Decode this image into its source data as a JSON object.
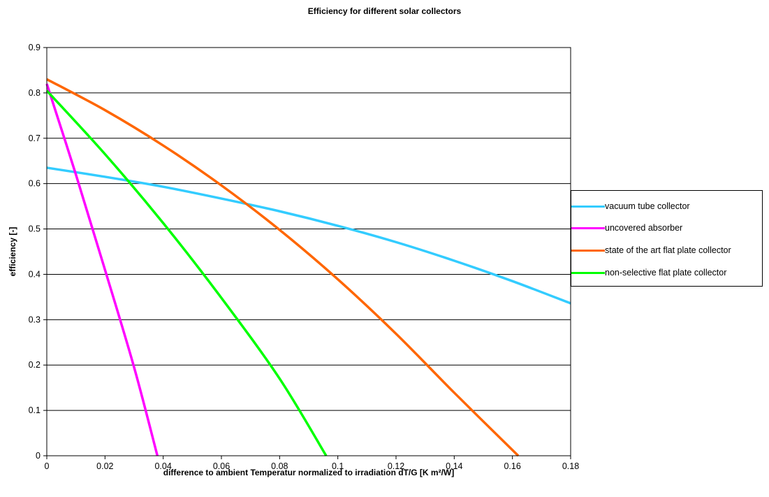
{
  "chart_data": {
    "type": "line",
    "title": "Efficiency for different solar collectors",
    "xlabel": "difference to ambient Temperatur normalized to irradiation dT/G  [K m²/W]",
    "ylabel": "efficiency [-]",
    "xlim": [
      0,
      0.18
    ],
    "ylim": [
      0,
      0.9
    ],
    "xticks": [
      "0",
      "0.02",
      "0.04",
      "0.06",
      "0.08",
      "0.1",
      "0.12",
      "0.14",
      "0.16",
      "0.18"
    ],
    "yticks": [
      "0",
      "0.1",
      "0.2",
      "0.3",
      "0.4",
      "0.5",
      "0.6",
      "0.7",
      "0.8",
      "0.9"
    ],
    "grid": "horizontal",
    "legend_position": "right",
    "series": [
      {
        "name": "vacuum tube collector",
        "color": "#33CCFF",
        "x": [
          0,
          0.02,
          0.04,
          0.06,
          0.08,
          0.1,
          0.12,
          0.14,
          0.16,
          0.18
        ],
        "y": [
          0.635,
          0.615,
          0.593,
          0.567,
          0.539,
          0.507,
          0.471,
          0.43,
          0.385,
          0.336
        ]
      },
      {
        "name": "uncovered absorber",
        "color": "#FF00FF",
        "x": [
          0,
          0.01,
          0.02,
          0.03,
          0.038
        ],
        "y": [
          0.82,
          0.62,
          0.41,
          0.195,
          0.0
        ]
      },
      {
        "name": "state of the art flat plate collector",
        "color": "#FF6600",
        "x": [
          0,
          0.02,
          0.04,
          0.06,
          0.08,
          0.1,
          0.12,
          0.14,
          0.162
        ],
        "y": [
          0.83,
          0.762,
          0.684,
          0.596,
          0.498,
          0.389,
          0.269,
          0.139,
          0.0
        ]
      },
      {
        "name": "non-selective flat plate collector",
        "color": "#00FF00",
        "x": [
          0,
          0.02,
          0.04,
          0.06,
          0.08,
          0.096
        ],
        "y": [
          0.805,
          0.665,
          0.513,
          0.348,
          0.17,
          0.0
        ]
      }
    ]
  }
}
